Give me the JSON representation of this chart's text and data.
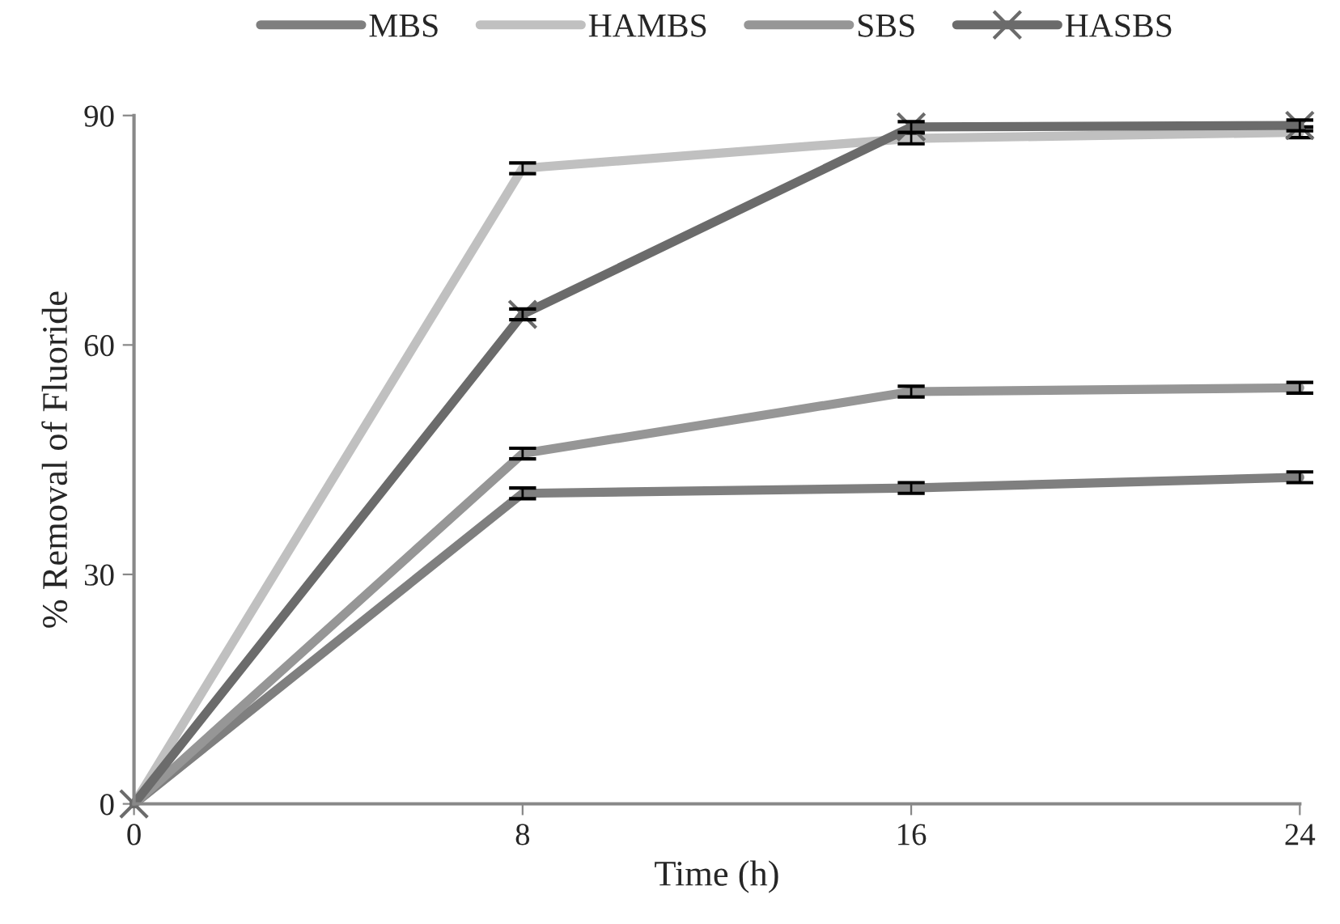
{
  "chart_data": {
    "type": "line",
    "xlabel": "Time (h)",
    "ylabel": "% Removal of Fluoride",
    "x": [
      0,
      8,
      16,
      24
    ],
    "xlim": [
      0,
      24
    ],
    "xticks": [
      0,
      8,
      16,
      24
    ],
    "ylim": [
      0,
      90
    ],
    "yticks": [
      0,
      30,
      60,
      90
    ],
    "grid": false,
    "legend": "top",
    "line_style": "solid",
    "series": [
      {
        "name": "MBS",
        "color": "#7f7f7f",
        "values": [
          0,
          40.6,
          41.3,
          42.7
        ],
        "errors": [
          null,
          0.7,
          0.7,
          0.7
        ],
        "marker": "none"
      },
      {
        "name": "HAMBS",
        "color": "#c0c0c0",
        "values": [
          0,
          83.1,
          87.0,
          87.8
        ],
        "errors": [
          null,
          0.7,
          0.7,
          0.7
        ],
        "marker": "none"
      },
      {
        "name": "SBS",
        "color": "#969696",
        "values": [
          0,
          45.8,
          53.9,
          54.4
        ],
        "errors": [
          null,
          0.7,
          0.7,
          0.7
        ],
        "marker": "none"
      },
      {
        "name": "HASBS",
        "color": "#6b6b6b",
        "values": [
          0,
          64.0,
          88.5,
          88.7
        ],
        "errors": [
          null,
          0.7,
          0.7,
          0.7
        ],
        "marker": "cross"
      }
    ]
  }
}
